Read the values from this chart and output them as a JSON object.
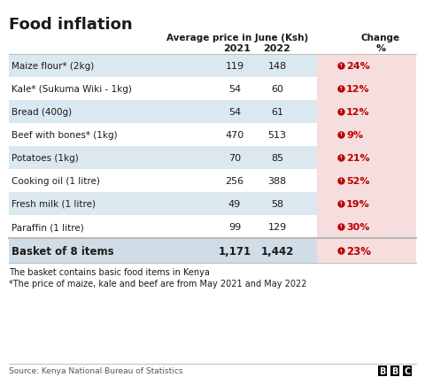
{
  "title": "Food inflation",
  "subtitle": "Average price in June (Ksh)",
  "col_2021": "2021",
  "col_2022": "2022",
  "col_change": "Change",
  "col_pct": "%",
  "rows": [
    {
      "item": "Maize flour* (2kg)",
      "v2021": "119",
      "v2022": "148",
      "change": "24%",
      "shade": true
    },
    {
      "item": "Kale* (Sukuma Wiki - 1kg)",
      "v2021": "54",
      "v2022": "60",
      "change": "12%",
      "shade": false
    },
    {
      "item": "Bread (400g)",
      "v2021": "54",
      "v2022": "61",
      "change": "12%",
      "shade": true
    },
    {
      "item": "Beef with bones* (1kg)",
      "v2021": "470",
      "v2022": "513",
      "change": "9%",
      "shade": false
    },
    {
      "item": "Potatoes (1kg)",
      "v2021": "70",
      "v2022": "85",
      "change": "21%",
      "shade": true
    },
    {
      "item": "Cooking oil (1 litre)",
      "v2021": "256",
      "v2022": "388",
      "change": "52%",
      "shade": false
    },
    {
      "item": "Fresh milk (1 litre)",
      "v2021": "49",
      "v2022": "58",
      "change": "19%",
      "shade": true
    },
    {
      "item": "Paraffin (1 litre)",
      "v2021": "99",
      "v2022": "129",
      "change": "30%",
      "shade": false
    }
  ],
  "basket": {
    "item": "Basket of 8 items",
    "v2021": "1,171",
    "v2022": "1,442",
    "change": "23%"
  },
  "footnote1": "The basket contains basic food items in Kenya",
  "footnote2": "*The price of maize, kale and beef are from May 2021 and May 2022",
  "source": "Source: Kenya National Bureau of Statistics",
  "bg_color": "#ffffff",
  "row_alt_color": "#dce8f0",
  "row_white_color": "#ffffff",
  "change_bg_color": "#f7dede",
  "basket_bg_color": "#d0dde6",
  "red_color": "#bb0000",
  "text_color": "#1a1a1a",
  "border_color": "#bbbbbb",
  "source_color": "#555555"
}
